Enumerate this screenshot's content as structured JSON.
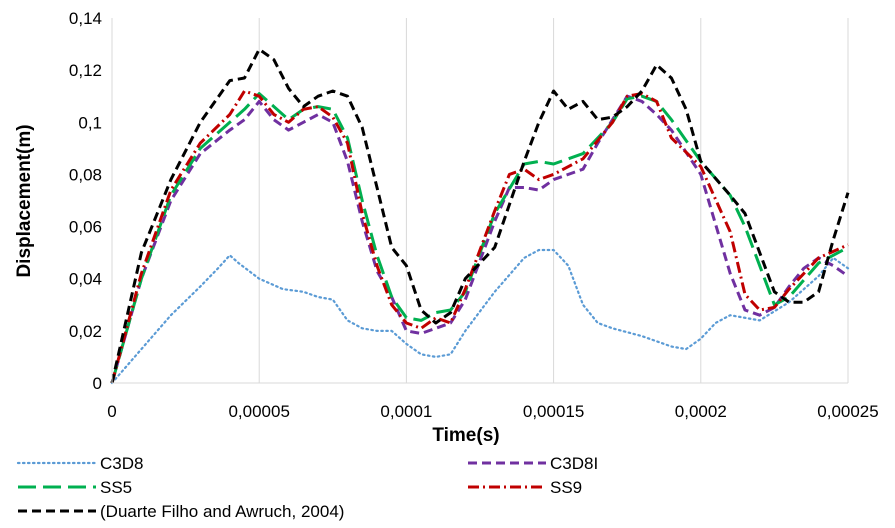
{
  "chart_data": {
    "type": "line",
    "xlabel": "Time(s)",
    "ylabel": "Displacement(m)",
    "xlim": [
      0,
      0.00025
    ],
    "ylim": [
      0,
      0.14
    ],
    "grid": "vertical",
    "legend_position": "bottom",
    "x_ticks": [
      0,
      5e-05,
      0.0001,
      0.00015,
      0.0002,
      0.00025
    ],
    "x_tick_labels": [
      "0",
      "0,00005",
      "0,0001",
      "0,00015",
      "0,0002",
      "0,00025"
    ],
    "y_ticks": [
      0,
      0.02,
      0.04,
      0.06,
      0.08,
      0.1,
      0.12,
      0.14
    ],
    "y_tick_labels": [
      "0",
      "0,02",
      "0,04",
      "0,06",
      "0,08",
      "0,1",
      "0,12",
      "0,14"
    ],
    "series": [
      {
        "name": "C3D8",
        "color": "#5b9bd5",
        "dash": "dotted",
        "points": [
          [
            0,
            0
          ],
          [
            1e-05,
            0.013
          ],
          [
            2e-05,
            0.026
          ],
          [
            3e-05,
            0.037
          ],
          [
            3.6e-05,
            0.044
          ],
          [
            4e-05,
            0.049
          ],
          [
            4.3e-05,
            0.046
          ],
          [
            5e-05,
            0.04
          ],
          [
            5.8e-05,
            0.036
          ],
          [
            6.5e-05,
            0.035
          ],
          [
            7e-05,
            0.033
          ],
          [
            7.5e-05,
            0.032
          ],
          [
            8e-05,
            0.024
          ],
          [
            8.5e-05,
            0.021
          ],
          [
            9e-05,
            0.02
          ],
          [
            9.5e-05,
            0.02
          ],
          [
            0.0001,
            0.015
          ],
          [
            0.000105,
            0.011
          ],
          [
            0.00011,
            0.01
          ],
          [
            0.000115,
            0.011
          ],
          [
            0.00012,
            0.02
          ],
          [
            0.00013,
            0.035
          ],
          [
            0.00014,
            0.048
          ],
          [
            0.000145,
            0.051
          ],
          [
            0.00015,
            0.051
          ],
          [
            0.000155,
            0.045
          ],
          [
            0.00016,
            0.03
          ],
          [
            0.000165,
            0.023
          ],
          [
            0.00017,
            0.021
          ],
          [
            0.00018,
            0.018
          ],
          [
            0.00019,
            0.014
          ],
          [
            0.000195,
            0.013
          ],
          [
            0.0002,
            0.017
          ],
          [
            0.000205,
            0.023
          ],
          [
            0.00021,
            0.026
          ],
          [
            0.00022,
            0.024
          ],
          [
            0.00023,
            0.031
          ],
          [
            0.00024,
            0.041
          ],
          [
            0.000245,
            0.048
          ],
          [
            0.00025,
            0.044
          ]
        ]
      },
      {
        "name": "C3D8I",
        "color": "#7030a0",
        "dash": "dash",
        "points": [
          [
            0,
            0
          ],
          [
            1e-05,
            0.04
          ],
          [
            2e-05,
            0.07
          ],
          [
            3e-05,
            0.088
          ],
          [
            4e-05,
            0.097
          ],
          [
            4.5e-05,
            0.101
          ],
          [
            5e-05,
            0.108
          ],
          [
            5.5e-05,
            0.101
          ],
          [
            6e-05,
            0.097
          ],
          [
            6.5e-05,
            0.1
          ],
          [
            7e-05,
            0.103
          ],
          [
            7.5e-05,
            0.1
          ],
          [
            8e-05,
            0.085
          ],
          [
            8.5e-05,
            0.062
          ],
          [
            9e-05,
            0.043
          ],
          [
            9.5e-05,
            0.033
          ],
          [
            0.0001,
            0.02
          ],
          [
            0.000105,
            0.019
          ],
          [
            0.00011,
            0.021
          ],
          [
            0.000115,
            0.023
          ],
          [
            0.00012,
            0.032
          ],
          [
            0.00013,
            0.062
          ],
          [
            0.000135,
            0.075
          ],
          [
            0.00014,
            0.075
          ],
          [
            0.000145,
            0.074
          ],
          [
            0.00015,
            0.078
          ],
          [
            0.00016,
            0.082
          ],
          [
            0.000165,
            0.092
          ],
          [
            0.00017,
            0.101
          ],
          [
            0.000175,
            0.11
          ],
          [
            0.00018,
            0.108
          ],
          [
            0.000185,
            0.103
          ],
          [
            0.00019,
            0.097
          ],
          [
            0.0002,
            0.08
          ],
          [
            0.000205,
            0.061
          ],
          [
            0.00021,
            0.042
          ],
          [
            0.000215,
            0.028
          ],
          [
            0.00022,
            0.026
          ],
          [
            0.000225,
            0.029
          ],
          [
            0.00023,
            0.037
          ],
          [
            0.000235,
            0.044
          ],
          [
            0.00024,
            0.048
          ],
          [
            0.000245,
            0.045
          ],
          [
            0.00025,
            0.041
          ]
        ]
      },
      {
        "name": "SS5",
        "color": "#00b050",
        "dash": "longdash",
        "points": [
          [
            0,
            0
          ],
          [
            1e-05,
            0.04
          ],
          [
            2e-05,
            0.072
          ],
          [
            3e-05,
            0.09
          ],
          [
            4e-05,
            0.1
          ],
          [
            4.5e-05,
            0.105
          ],
          [
            5e-05,
            0.111
          ],
          [
            5.5e-05,
            0.106
          ],
          [
            6e-05,
            0.101
          ],
          [
            6.5e-05,
            0.105
          ],
          [
            7e-05,
            0.106
          ],
          [
            7.5e-05,
            0.105
          ],
          [
            8e-05,
            0.094
          ],
          [
            8.5e-05,
            0.07
          ],
          [
            9e-05,
            0.049
          ],
          [
            9.5e-05,
            0.033
          ],
          [
            0.0001,
            0.025
          ],
          [
            0.000105,
            0.024
          ],
          [
            0.00011,
            0.027
          ],
          [
            0.000115,
            0.028
          ],
          [
            0.00012,
            0.035
          ],
          [
            0.00013,
            0.065
          ],
          [
            0.00014,
            0.084
          ],
          [
            0.000145,
            0.085
          ],
          [
            0.00015,
            0.084
          ],
          [
            0.00016,
            0.088
          ],
          [
            0.00017,
            0.1
          ],
          [
            0.000175,
            0.109
          ],
          [
            0.00018,
            0.11
          ],
          [
            0.000185,
            0.108
          ],
          [
            0.00019,
            0.101
          ],
          [
            0.0002,
            0.085
          ],
          [
            0.00021,
            0.072
          ],
          [
            0.000215,
            0.06
          ],
          [
            0.00022,
            0.045
          ],
          [
            0.000225,
            0.03
          ],
          [
            0.00023,
            0.033
          ],
          [
            0.00024,
            0.046
          ],
          [
            0.00025,
            0.052
          ]
        ]
      },
      {
        "name": "SS9",
        "color": "#c00000",
        "dash": "dashdot",
        "points": [
          [
            0,
            0
          ],
          [
            1e-05,
            0.042
          ],
          [
            2e-05,
            0.074
          ],
          [
            3e-05,
            0.092
          ],
          [
            4e-05,
            0.103
          ],
          [
            4.5e-05,
            0.112
          ],
          [
            5e-05,
            0.11
          ],
          [
            5.5e-05,
            0.103
          ],
          [
            6e-05,
            0.1
          ],
          [
            6.5e-05,
            0.105
          ],
          [
            7e-05,
            0.106
          ],
          [
            7.5e-05,
            0.102
          ],
          [
            8e-05,
            0.092
          ],
          [
            8.5e-05,
            0.065
          ],
          [
            9e-05,
            0.045
          ],
          [
            9.5e-05,
            0.03
          ],
          [
            0.0001,
            0.023
          ],
          [
            0.000105,
            0.021
          ],
          [
            0.00011,
            0.025
          ],
          [
            0.000115,
            0.023
          ],
          [
            0.00012,
            0.036
          ],
          [
            0.00013,
            0.066
          ],
          [
            0.000135,
            0.08
          ],
          [
            0.00014,
            0.082
          ],
          [
            0.000145,
            0.078
          ],
          [
            0.00015,
            0.08
          ],
          [
            0.00016,
            0.086
          ],
          [
            0.00017,
            0.1
          ],
          [
            0.000175,
            0.11
          ],
          [
            0.00018,
            0.111
          ],
          [
            0.000185,
            0.108
          ],
          [
            0.00019,
            0.094
          ],
          [
            0.0002,
            0.083
          ],
          [
            0.00021,
            0.058
          ],
          [
            0.000215,
            0.034
          ],
          [
            0.00022,
            0.028
          ],
          [
            0.000225,
            0.029
          ],
          [
            0.00023,
            0.036
          ],
          [
            0.00024,
            0.048
          ],
          [
            0.00025,
            0.053
          ]
        ]
      },
      {
        "name": "(Duarte Filho and Awruch, 2004)",
        "color": "#000000",
        "dash": "dash",
        "points": [
          [
            0,
            0
          ],
          [
            5e-06,
            0.025
          ],
          [
            1e-05,
            0.05
          ],
          [
            2e-05,
            0.078
          ],
          [
            3e-05,
            0.1
          ],
          [
            4e-05,
            0.116
          ],
          [
            4.5e-05,
            0.117
          ],
          [
            5e-05,
            0.128
          ],
          [
            5.5e-05,
            0.124
          ],
          [
            6e-05,
            0.113
          ],
          [
            6.5e-05,
            0.106
          ],
          [
            7e-05,
            0.11
          ],
          [
            7.5e-05,
            0.112
          ],
          [
            8e-05,
            0.11
          ],
          [
            8.5e-05,
            0.098
          ],
          [
            9e-05,
            0.075
          ],
          [
            9.5e-05,
            0.052
          ],
          [
            0.0001,
            0.045
          ],
          [
            0.000105,
            0.028
          ],
          [
            0.00011,
            0.023
          ],
          [
            0.000115,
            0.027
          ],
          [
            0.00012,
            0.04
          ],
          [
            0.00013,
            0.052
          ],
          [
            0.00014,
            0.085
          ],
          [
            0.000145,
            0.1
          ],
          [
            0.00015,
            0.112
          ],
          [
            0.000155,
            0.105
          ],
          [
            0.00016,
            0.108
          ],
          [
            0.000165,
            0.101
          ],
          [
            0.00017,
            0.102
          ],
          [
            0.000175,
            0.106
          ],
          [
            0.00018,
            0.112
          ],
          [
            0.000185,
            0.122
          ],
          [
            0.00019,
            0.117
          ],
          [
            0.000195,
            0.105
          ],
          [
            0.0002,
            0.085
          ],
          [
            0.00021,
            0.072
          ],
          [
            0.000215,
            0.065
          ],
          [
            0.00022,
            0.05
          ],
          [
            0.000225,
            0.035
          ],
          [
            0.00023,
            0.031
          ],
          [
            0.000235,
            0.031
          ],
          [
            0.00024,
            0.035
          ],
          [
            0.000245,
            0.055
          ],
          [
            0.00025,
            0.073
          ]
        ]
      }
    ]
  }
}
